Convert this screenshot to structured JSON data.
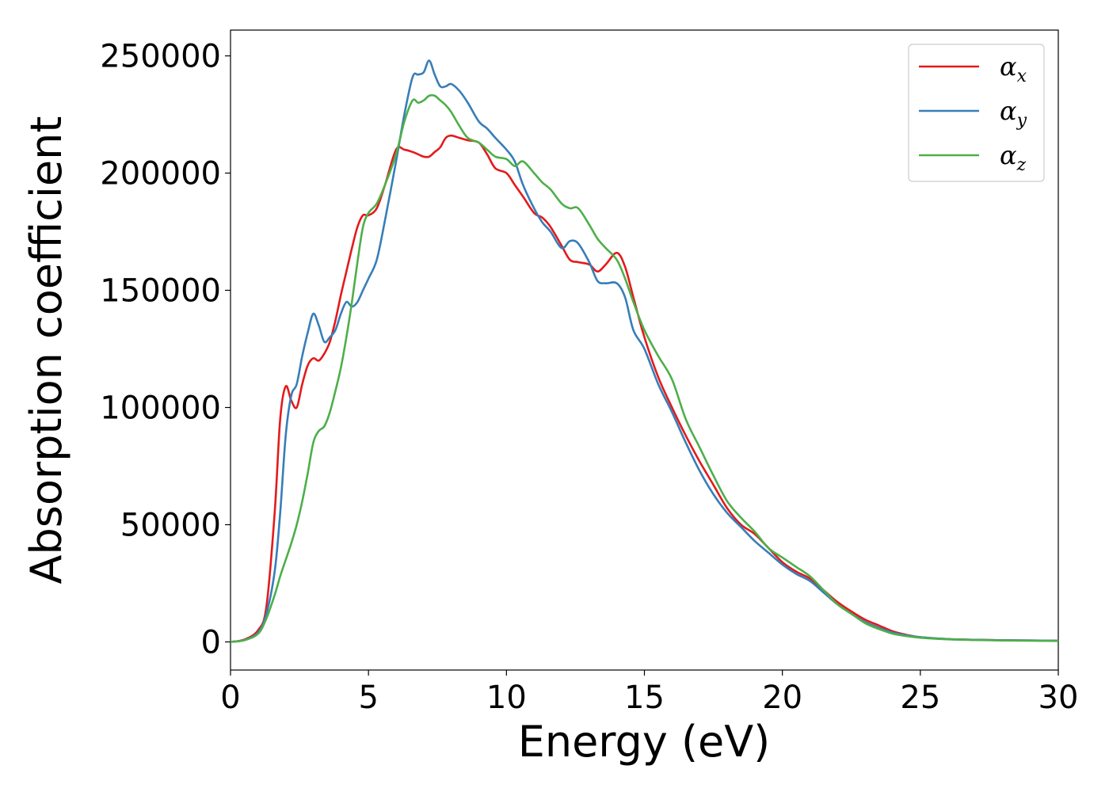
{
  "chart_data": {
    "type": "line",
    "xlabel": "Energy (eV)",
    "ylabel": "Absorption coefficient",
    "xlim": [
      0,
      30
    ],
    "ylim": [
      -12000,
      261000
    ],
    "xticks": [
      0,
      5,
      10,
      15,
      20,
      25,
      30
    ],
    "yticks": [
      0,
      50000,
      100000,
      150000,
      200000,
      250000
    ],
    "grid": false,
    "legend_position": "top-right",
    "x": [
      0,
      0.5,
      1.0,
      1.3,
      1.6,
      1.8,
      2.0,
      2.2,
      2.4,
      2.6,
      2.8,
      3.0,
      3.2,
      3.4,
      3.6,
      3.8,
      4.0,
      4.2,
      4.4,
      4.6,
      4.8,
      5.0,
      5.3,
      5.6,
      6.0,
      6.3,
      6.6,
      6.8,
      7.0,
      7.2,
      7.4,
      7.6,
      7.8,
      8.0,
      8.3,
      8.6,
      9.0,
      9.3,
      9.6,
      10.0,
      10.3,
      10.6,
      11.0,
      11.3,
      11.6,
      12.0,
      12.3,
      12.6,
      13.0,
      13.3,
      13.6,
      14.0,
      14.3,
      14.6,
      15.0,
      15.5,
      16.0,
      16.5,
      17.0,
      17.5,
      18.0,
      18.5,
      19.0,
      19.5,
      20.0,
      20.5,
      21.0,
      21.5,
      22.0,
      22.5,
      23.0,
      23.5,
      24.0,
      24.5,
      25.0,
      26.0,
      27.0,
      28.0,
      29.0,
      30.0
    ],
    "series": [
      {
        "name": "α",
        "subscript": "x",
        "color": "#e41a1c",
        "values": [
          0,
          1000,
          5000,
          15000,
          55000,
          95000,
          109000,
          103000,
          100000,
          110000,
          118000,
          121000,
          120000,
          123000,
          128000,
          137000,
          148000,
          158000,
          168000,
          177000,
          182000,
          182000,
          185000,
          195000,
          210000,
          210000,
          209000,
          208000,
          207000,
          207000,
          209000,
          211000,
          215000,
          216000,
          215000,
          214000,
          213000,
          208000,
          202000,
          200000,
          195000,
          190000,
          183000,
          181000,
          177000,
          169000,
          163000,
          162000,
          161000,
          158000,
          161000,
          166000,
          160000,
          147000,
          130000,
          113000,
          100000,
          88000,
          77000,
          67000,
          57000,
          50000,
          46000,
          40000,
          34000,
          30000,
          27000,
          22000,
          17000,
          13000,
          9500,
          7000,
          4500,
          3000,
          2000,
          1200,
          900,
          700,
          600,
          500
        ]
      },
      {
        "name": "α",
        "subscript": "y",
        "color": "#377eb8",
        "values": [
          0,
          800,
          4000,
          12000,
          30000,
          55000,
          88000,
          105000,
          110000,
          122000,
          132000,
          140000,
          135000,
          128000,
          130000,
          133000,
          140000,
          145000,
          143000,
          145000,
          150000,
          155000,
          163000,
          180000,
          205000,
          225000,
          241000,
          242000,
          243000,
          248000,
          242000,
          237000,
          237000,
          238000,
          235000,
          230000,
          222000,
          219000,
          215000,
          210000,
          205000,
          195000,
          185000,
          179000,
          175000,
          168000,
          171000,
          170000,
          162000,
          154000,
          153000,
          153000,
          147000,
          133000,
          125000,
          110000,
          98000,
          85000,
          73000,
          63000,
          55000,
          49000,
          43000,
          38000,
          33000,
          29000,
          26000,
          21000,
          16000,
          12000,
          8500,
          6000,
          4000,
          2800,
          2000,
          1200,
          900,
          700,
          600,
          500
        ]
      },
      {
        "name": "α",
        "subscript": "z",
        "color": "#4daf4a",
        "values": [
          0,
          700,
          3500,
          10000,
          20000,
          28000,
          35000,
          42000,
          50000,
          60000,
          72000,
          85000,
          90000,
          92000,
          98000,
          107000,
          117000,
          130000,
          145000,
          162000,
          177000,
          183000,
          187000,
          195000,
          208000,
          222000,
          231000,
          230000,
          231000,
          233000,
          233000,
          231000,
          229000,
          226000,
          220000,
          215000,
          213000,
          210000,
          207000,
          206000,
          203000,
          205000,
          200000,
          196000,
          193000,
          187000,
          185000,
          185000,
          178000,
          172000,
          168000,
          163000,
          155000,
          145000,
          133000,
          122000,
          112000,
          95000,
          83000,
          71000,
          60000,
          53000,
          47000,
          40000,
          36000,
          32000,
          28000,
          22000,
          16000,
          12000,
          8000,
          5500,
          3500,
          2500,
          1800,
          1100,
          800,
          600,
          500,
          400
        ]
      }
    ]
  }
}
